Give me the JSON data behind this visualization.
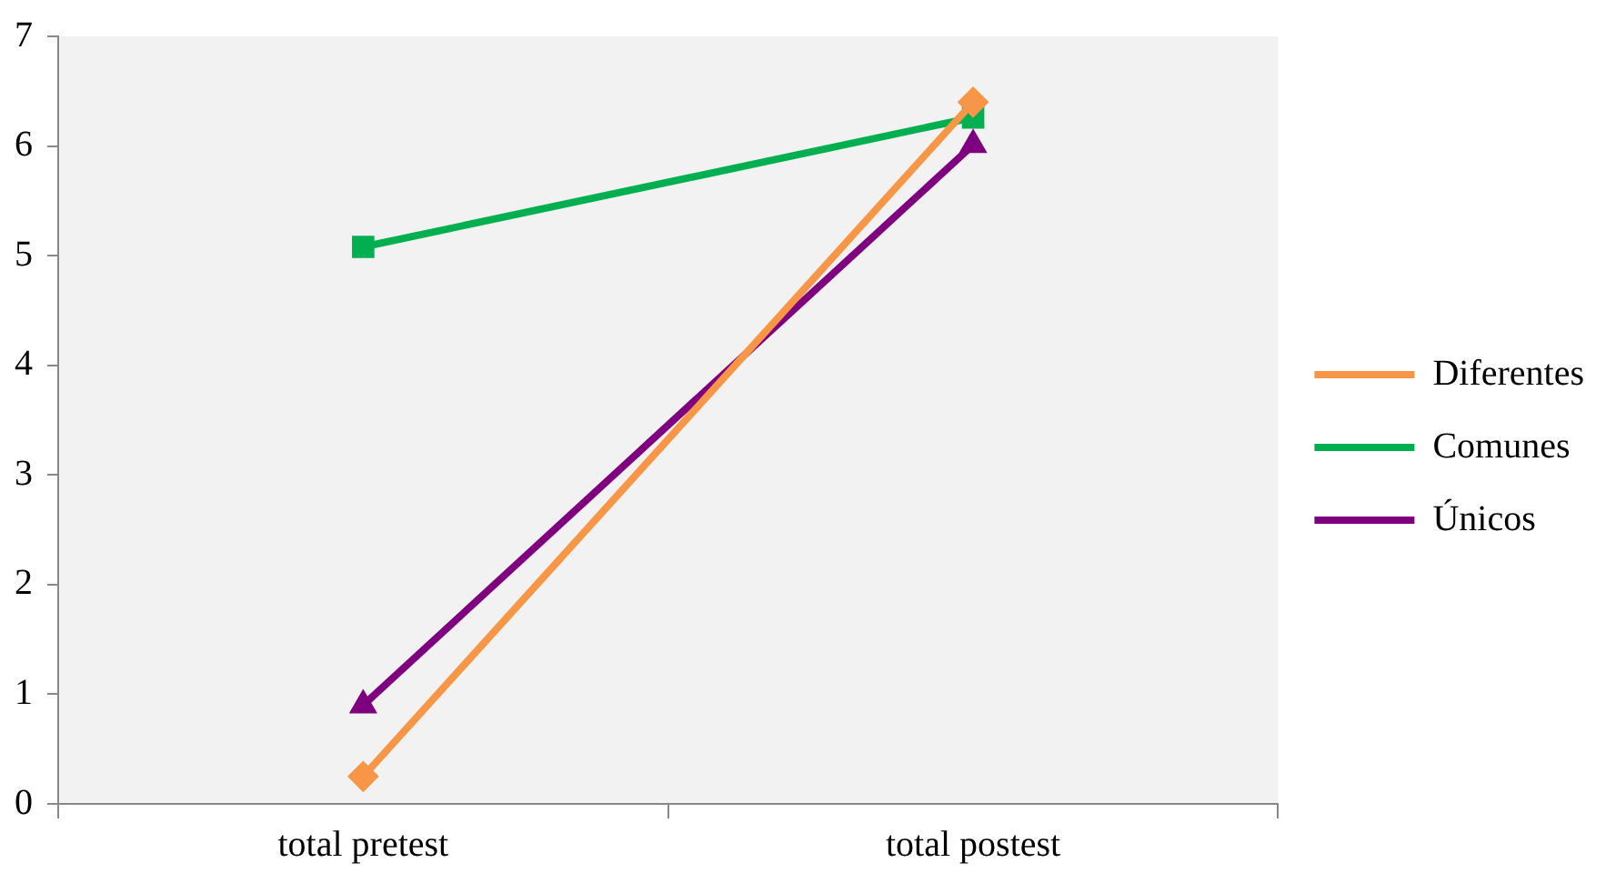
{
  "chart_data": {
    "type": "line",
    "categories": [
      "total pretest",
      "total postest"
    ],
    "series": [
      {
        "name": "Diferentes",
        "color": "#f79646",
        "marker": "diamond",
        "values": [
          0.25,
          6.4
        ]
      },
      {
        "name": "Comunes",
        "color": "#00b050",
        "marker": "square",
        "values": [
          5.08,
          6.26
        ]
      },
      {
        "name": "Únicos",
        "color": "#7f007f",
        "marker": "triangle",
        "values": [
          0.9,
          6.01
        ]
      }
    ],
    "ylim": [
      0,
      7
    ],
    "yticks": [
      0,
      1,
      2,
      3,
      4,
      5,
      6,
      7
    ],
    "grid": false,
    "legend": "right",
    "line_style": "solid"
  }
}
